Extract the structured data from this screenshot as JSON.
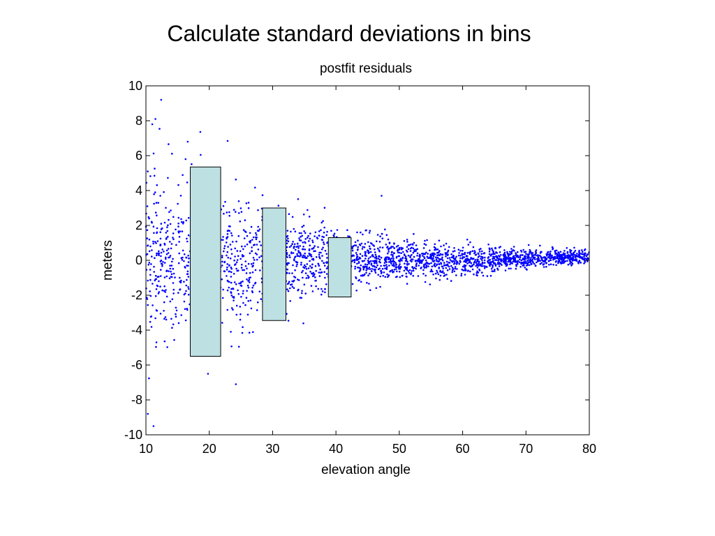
{
  "slide": {
    "title": "Calculate standard deviations in bins"
  },
  "chart_data": {
    "type": "scatter",
    "title": "postfit residuals",
    "xlabel": "elevation angle",
    "ylabel": "meters",
    "xlim": [
      10,
      80
    ],
    "ylim": [
      -10,
      10
    ],
    "xticks": [
      10,
      20,
      30,
      40,
      50,
      60,
      70,
      80
    ],
    "yticks": [
      -10,
      -8,
      -6,
      -4,
      -2,
      0,
      2,
      4,
      6,
      8,
      10
    ],
    "grid": false,
    "marker_color": "#0000ff",
    "bin_fill_color": "#bde0e3",
    "bins": [
      {
        "x_start": 17,
        "x_end": 21.8,
        "y_low": -5.5,
        "y_high": 5.35
      },
      {
        "x_start": 28.4,
        "x_end": 32.1,
        "y_low": -3.45,
        "y_high": 3.0
      },
      {
        "x_start": 38.8,
        "x_end": 42.4,
        "y_low": -2.1,
        "y_high": 1.3
      }
    ],
    "scatter_envelope": {
      "description_points": [
        {
          "x": 10,
          "y_spread": 5.5
        },
        {
          "x": 20,
          "y_spread": 4.5
        },
        {
          "x": 30,
          "y_spread": 2.7
        },
        {
          "x": 40,
          "y_spread": 1.7
        },
        {
          "x": 50,
          "y_spread": 1.2
        },
        {
          "x": 60,
          "y_spread": 0.85
        },
        {
          "x": 70,
          "y_spread": 0.55
        },
        {
          "x": 80,
          "y_spread": 0.4
        }
      ]
    },
    "outliers": [
      {
        "x": 12.4,
        "y": 9.2
      },
      {
        "x": 11.5,
        "y": 8.1
      },
      {
        "x": 11.0,
        "y": 7.8
      },
      {
        "x": 16.6,
        "y": 6.8
      },
      {
        "x": 47.2,
        "y": 3.7
      },
      {
        "x": 24.2,
        "y": -7.1
      },
      {
        "x": 19.8,
        "y": -6.5
      },
      {
        "x": 11.2,
        "y": -9.5
      },
      {
        "x": 10.3,
        "y": -8.8
      }
    ]
  }
}
